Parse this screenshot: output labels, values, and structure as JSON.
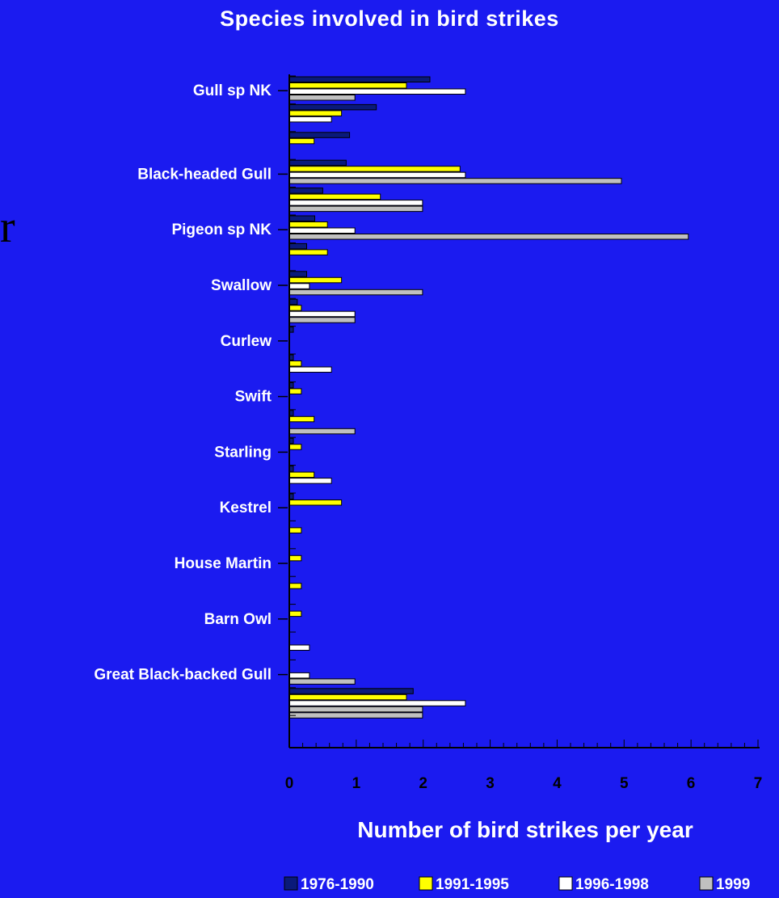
{
  "chart_data": {
    "type": "bar",
    "orientation": "horizontal",
    "title": "Species involved in bird strikes",
    "xlabel": "Number of bird strikes per year",
    "ylabel": "",
    "xlim": [
      0,
      7
    ],
    "xticks": [
      "0",
      "1",
      "2",
      "3",
      "4",
      "5",
      "6",
      "7"
    ],
    "grid": false,
    "legend_position": "bottom",
    "category_labels_shown": [
      "Gull sp NK",
      "",
      "",
      "Black-headed Gull",
      "",
      "Pigeon sp NK",
      "",
      "Swallow",
      "",
      "Curlew",
      "",
      "Swift",
      "",
      "Starling",
      "",
      "Kestrel",
      "",
      "House Martin",
      "",
      "Barn Owl",
      "",
      "Great Black-backed Gull",
      ""
    ],
    "series": [
      {
        "name": "1976-1990",
        "color": "#0a1a7a",
        "values": [
          2.1,
          1.3,
          0.9,
          0.85,
          0.5,
          0.38,
          0.26,
          0.26,
          0.12,
          0.06,
          0.06,
          0.06,
          0.06,
          0.06,
          0.06,
          0.06,
          0.0,
          0.0,
          0.0,
          0.0,
          0.0,
          0.0,
          1.85
        ]
      },
      {
        "name": "1991-1995",
        "color": "#ffff00",
        "values": [
          1.75,
          0.78,
          0.37,
          2.55,
          1.36,
          0.57,
          0.57,
          0.78,
          0.18,
          0.0,
          0.18,
          0.18,
          0.37,
          0.18,
          0.37,
          0.78,
          0.18,
          0.18,
          0.18,
          0.18,
          0.0,
          0.0,
          1.75
        ]
      },
      {
        "name": "1996-1998",
        "color": "#ffffff",
        "values": [
          2.63,
          0.63,
          0.0,
          2.63,
          1.99,
          0.98,
          0.0,
          0.3,
          0.98,
          0.0,
          0.63,
          0.0,
          0.0,
          0.0,
          0.63,
          0.0,
          0.0,
          0.0,
          0.0,
          0.0,
          0.3,
          0.3,
          2.63
        ]
      },
      {
        "name": "1999",
        "color": "#c0c0c0",
        "values": [
          0.98,
          0.0,
          0.0,
          4.96,
          1.99,
          5.96,
          0.0,
          1.99,
          0.98,
          0.0,
          0.0,
          0.0,
          0.98,
          0.0,
          0.0,
          0.0,
          0.0,
          0.0,
          0.0,
          0.0,
          0.0,
          0.98,
          1.99
        ]
      }
    ],
    "extra_bar_after_last": {
      "series": "1999",
      "value": 1.99
    }
  },
  "stray_text": "r",
  "colors": {
    "background": "#1b1bf0",
    "axis": "#000000",
    "text": "#ffffff"
  }
}
